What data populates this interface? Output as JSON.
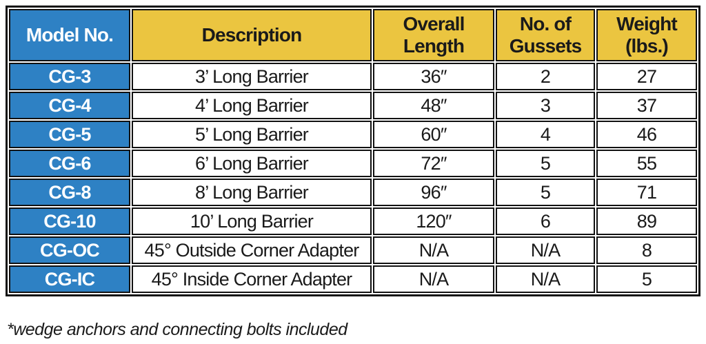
{
  "colors": {
    "blue": "#2E81C4",
    "yellow": "#EBC540",
    "border": "#111111",
    "text": "#1A1A1A",
    "white": "#FFFFFF"
  },
  "table": {
    "columns": [
      "Model No.",
      "Description",
      "Overall Length",
      "No. of Gussets",
      "Weight (lbs.)"
    ],
    "rows": [
      {
        "model": "CG-3",
        "description": "3’ Long Barrier",
        "overall_length": "36″",
        "gussets": "2",
        "weight": "27"
      },
      {
        "model": "CG-4",
        "description": "4’ Long Barrier",
        "overall_length": "48″",
        "gussets": "3",
        "weight": "37"
      },
      {
        "model": "CG-5",
        "description": "5’ Long Barrier",
        "overall_length": "60″",
        "gussets": "4",
        "weight": "46"
      },
      {
        "model": "CG-6",
        "description": "6’ Long Barrier",
        "overall_length": "72″",
        "gussets": "5",
        "weight": "55"
      },
      {
        "model": "CG-8",
        "description": "8’ Long Barrier",
        "overall_length": "96″",
        "gussets": "5",
        "weight": "71"
      },
      {
        "model": "CG-10",
        "description": "10’ Long Barrier",
        "overall_length": "120″",
        "gussets": "6",
        "weight": "89"
      },
      {
        "model": "CG-OC",
        "description": "45° Outside Corner Adapter",
        "overall_length": "N/A",
        "gussets": "N/A",
        "weight": "8"
      },
      {
        "model": "CG-IC",
        "description": "45° Inside Corner Adapter",
        "overall_length": "N/A",
        "gussets": "N/A",
        "weight": "5"
      }
    ]
  },
  "footnote": "*wedge anchors and connecting bolts included"
}
